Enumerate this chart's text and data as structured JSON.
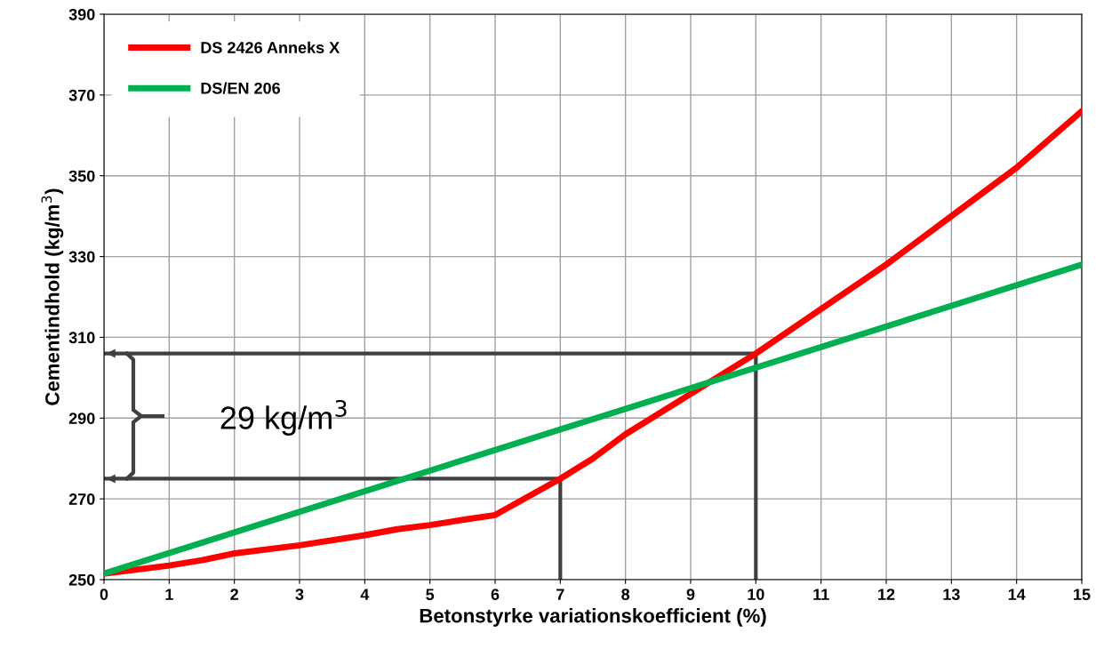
{
  "chart_data": {
    "type": "line",
    "xlabel": "Betonstyrke variationskoefficient (%)",
    "ylabel": "Cementindhold (kg/m$^{3}$)",
    "xlim": [
      0,
      15
    ],
    "xticks": [
      0,
      1,
      2,
      3,
      4,
      5,
      6,
      7,
      8,
      9,
      10,
      11,
      12,
      13,
      14,
      15
    ],
    "ylim": [
      250,
      390
    ],
    "yticks": [
      250,
      270,
      290,
      310,
      330,
      350,
      370,
      390
    ],
    "grid": true,
    "legend": "top left",
    "marker": "none",
    "line_style": "solid",
    "series": [
      {
        "name": "DS 2426 Anneks X",
        "color": "#ff0000",
        "x": [
          0,
          1,
          1.5,
          2,
          3,
          4,
          4.5,
          5,
          5.5,
          6,
          7,
          7.5,
          8,
          9,
          10,
          11,
          12,
          13,
          14,
          14.5,
          15
        ],
        "values": [
          251.5,
          253.5,
          254.8,
          256.5,
          258.5,
          261,
          262.5,
          263.5,
          264.8,
          266,
          275,
          280,
          286,
          296,
          306,
          317,
          328,
          340,
          352,
          359,
          366
        ]
      },
      {
        "name": "DS/EN 206",
        "color": "#00b050",
        "x": [
          0,
          15
        ],
        "values": [
          251.5,
          328
        ]
      },
      {
        "color": "#404040",
        "x": [
          0,
          7,
          7
        ],
        "values": [
          275,
          275,
          250
        ]
      },
      {
        "color": "#404040",
        "x": [
          0,
          10,
          10
        ],
        "values": [
          306,
          306,
          250
        ]
      }
    ],
    "annotations": [
      "29 kg/m$^{3}$"
    ]
  }
}
